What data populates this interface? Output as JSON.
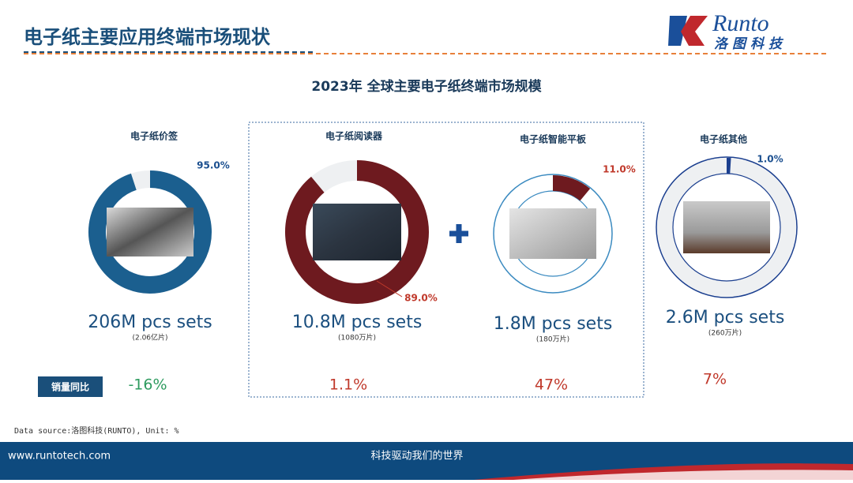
{
  "header": {
    "title": "电子纸主要应用终端市场现状",
    "logo_text": "Runto",
    "logo_subtitle": "洛图科技"
  },
  "main_title": "2023年 全球主要电子纸终端市场规模",
  "chart_data": [
    {
      "type": "pie",
      "title": "电子纸价签",
      "values": [
        95.0
      ],
      "value_labels": [
        "95.0%"
      ],
      "color": "#1b5f8f",
      "volume": "206M pcs sets",
      "volume_note": "(2.06亿片)",
      "growth": "-16%"
    },
    {
      "type": "pie",
      "title": "电子纸阅读器",
      "values": [
        89.0
      ],
      "value_labels": [
        "89.0%"
      ],
      "color": "#6e1a1f",
      "volume": "10.8M pcs sets",
      "volume_note": "(1080万片)",
      "growth": "1.1%"
    },
    {
      "type": "pie",
      "title": "电子纸智能平板",
      "values": [
        11.0
      ],
      "value_labels": [
        "11.0%"
      ],
      "color": "#6e1a1f",
      "volume": "1.8M pcs sets",
      "volume_note": "(180万片)",
      "growth": "47%"
    },
    {
      "type": "pie",
      "title": "电子纸其他",
      "values": [
        1.0
      ],
      "value_labels": [
        "1.0%"
      ],
      "color": "#1b3f8f",
      "volume": "2.6M pcs sets",
      "volume_note": "(260万片)",
      "growth": "7%"
    }
  ],
  "growth_label": "销量同比",
  "source": "Data source:洛图科技(RUNTO), Unit: %",
  "footer": {
    "url": "www.runtotech.com",
    "slogan": "科技驱动我们的世界"
  }
}
